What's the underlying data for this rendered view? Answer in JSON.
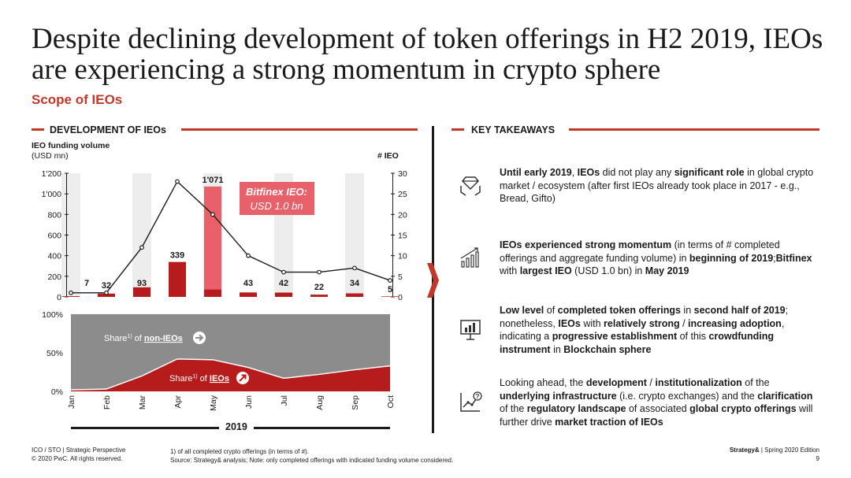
{
  "header": {
    "title": "Despite declining development of token offerings in H2 2019, IEOs are experiencing a strong momentum in crypto sphere",
    "subtitle": "Scope of IEOs"
  },
  "left_section": {
    "heading": "DEVELOPMENT OF IEOs",
    "axis_left_title_bold": "IEO funding volume",
    "axis_left_title_unit": "(USD mn)",
    "axis_right_title": "# IEO",
    "callout_line1": "Bitfinex IEO:",
    "callout_line2": "USD 1.0 bn",
    "share_non_ieo_prefix": "Share",
    "share_non_ieo_sup": "1)",
    "share_non_ieo_of": "of",
    "share_non_ieo_label": "non-IEOs",
    "share_ieo_prefix": "Share",
    "share_ieo_sup": "1)",
    "share_ieo_of": "of",
    "share_ieo_label": "IEOs",
    "year": "2019"
  },
  "chart_data": [
    {
      "type": "bar",
      "title": "DEVELOPMENT OF IEOs",
      "categories": [
        "Jan",
        "Feb",
        "Mar",
        "Apr",
        "May",
        "Jun",
        "Jul",
        "Aug",
        "Sep",
        "Oct"
      ],
      "series": [
        {
          "name": "IEO funding volume (USD mn)",
          "axis": "left",
          "values": [
            7,
            32,
            93,
            339,
            1071,
            43,
            42,
            22,
            34,
            5
          ],
          "labels": [
            "7",
            "32",
            "93",
            "339",
            "1'071",
            "43",
            "42",
            "22",
            "34",
            "5"
          ]
        },
        {
          "name": "# IEO",
          "type": "line",
          "axis": "right",
          "values": [
            1,
            1,
            12,
            28,
            20,
            10,
            6,
            6,
            7,
            4
          ]
        }
      ],
      "highlight": {
        "category": "May",
        "annotation": "Bitfinex IEO: USD 1.0 bn",
        "annotated_value": 1000
      },
      "yticks_left": [
        "0",
        "200",
        "400",
        "600",
        "800",
        "1'000",
        "1'200"
      ],
      "yticks_right": [
        "0",
        "5",
        "10",
        "15",
        "20",
        "25",
        "30"
      ],
      "ylim_left": [
        0,
        1200
      ],
      "ylim_right": [
        0,
        30
      ]
    },
    {
      "type": "area",
      "title": "Share of IEOs vs non-IEOs (in terms of #)",
      "categories": [
        "Jan",
        "Feb",
        "Mar",
        "Apr",
        "May",
        "Jun",
        "Jul",
        "Aug",
        "Sep",
        "Oct"
      ],
      "series": [
        {
          "name": "Share of IEOs",
          "values": [
            2,
            3,
            20,
            42,
            41,
            31,
            17,
            22,
            28,
            33
          ]
        },
        {
          "name": "Share of non-IEOs",
          "values": [
            98,
            97,
            80,
            58,
            59,
            69,
            83,
            78,
            72,
            67
          ]
        }
      ],
      "yticks": [
        "0%",
        "50%",
        "100%"
      ],
      "ylim": [
        0,
        100
      ]
    }
  ],
  "right_section": {
    "heading": "KEY TAKEAWAYS",
    "takeaways": [
      {
        "icon": "diamond-hands-icon",
        "segments": [
          [
            "Until early 2019",
            true
          ],
          [
            ", ",
            false
          ],
          [
            "IEOs",
            true
          ],
          [
            " did not play any ",
            false
          ],
          [
            "significant role",
            true
          ],
          [
            " in global crypto market / ecosystem (after first IEOs already took place in 2017 - e.g., Bread, Gifto)",
            false
          ]
        ]
      },
      {
        "icon": "growth-chart-icon",
        "segments": [
          [
            "IEOs experienced strong momentum",
            true
          ],
          [
            " (in terms of # completed offerings and aggregate funding volume) in ",
            false
          ],
          [
            "beginning of 2019",
            true
          ],
          [
            ";",
            false
          ],
          [
            "Bitfinex",
            true
          ],
          [
            " with ",
            false
          ],
          [
            "largest IEO",
            true
          ],
          [
            " (USD 1.0 bn) in ",
            false
          ],
          [
            "May 2019",
            true
          ]
        ]
      },
      {
        "icon": "presentation-board-icon",
        "segments": [
          [
            "Low level",
            true
          ],
          [
            " of ",
            false
          ],
          [
            "completed token offerings",
            true
          ],
          [
            " in ",
            false
          ],
          [
            "second half of 2019",
            true
          ],
          [
            "; nonetheless, ",
            false
          ],
          [
            "IEOs",
            true
          ],
          [
            " with ",
            false
          ],
          [
            "relatively strong",
            true
          ],
          [
            " / ",
            false
          ],
          [
            "increasing adoption",
            true
          ],
          [
            ", indicating a ",
            false
          ],
          [
            "progressive establishment",
            true
          ],
          [
            " of this ",
            false
          ],
          [
            "crowdfunding instrument",
            true
          ],
          [
            " in ",
            false
          ],
          [
            "Blockchain sphere",
            true
          ]
        ]
      },
      {
        "icon": "trend-question-icon",
        "segments": [
          [
            "Looking ahead, the ",
            false
          ],
          [
            "development",
            true
          ],
          [
            " / ",
            false
          ],
          [
            "institutionalization",
            true
          ],
          [
            " of the ",
            false
          ],
          [
            "underlying infrastructure",
            true
          ],
          [
            " (i.e. crypto exchanges) and the ",
            false
          ],
          [
            "clarification",
            true
          ],
          [
            " of the ",
            false
          ],
          [
            "regulatory landscape",
            true
          ],
          [
            " of associated ",
            false
          ],
          [
            "global crypto offerings",
            true
          ],
          [
            " will further drive ",
            false
          ],
          [
            "market traction of IEOs",
            true
          ]
        ]
      }
    ]
  },
  "footer": {
    "left_line1": "ICO / STO | Strategic Perspective",
    "left_line2": "© 2020 PwC. All rights reserved.",
    "note1": "1) of all completed crypto offerings (in terms of #).",
    "note2": "Source: Strategy& analysis; Note: only completed offerings with indicated funding volume considered.",
    "brand": "Strategy&",
    "edition": " | Spring 2020 Edition",
    "page": "9"
  },
  "colors": {
    "accent": "#c0392b",
    "bar_dark": "#b71c1c",
    "bar_highlight": "#e8606a",
    "grey_area": "#8c8c8c",
    "band": "#ededed"
  }
}
